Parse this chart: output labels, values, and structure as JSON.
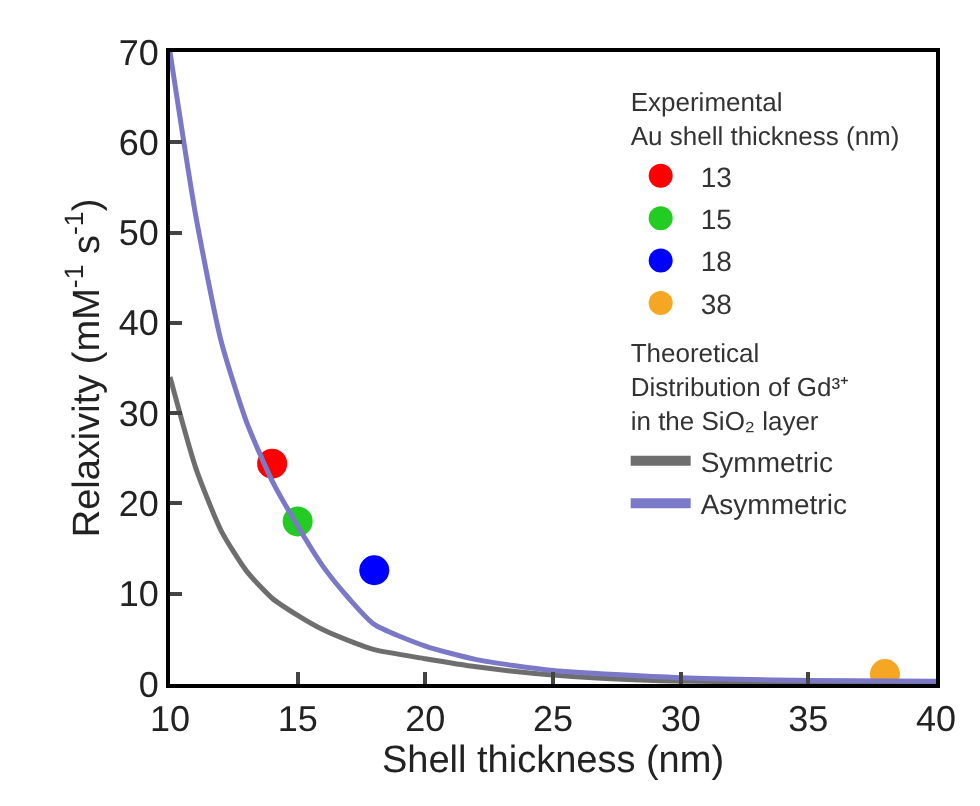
{
  "chart_data": {
    "type": "line",
    "xlabel": "Shell thickness (nm)",
    "ylabel": "Relaxivity (mM$^{-1}$ s$^{-1}$)",
    "legend_title": "Experimental\nAu shell thickness (nm)",
    "annotations": [
      "Theoretical\nDistribution of Gd³⁺\nin the SiO₂ layer"
    ],
    "xlim": [
      10,
      40
    ],
    "xticks": [
      10,
      15,
      20,
      25,
      30,
      35,
      40
    ],
    "ylim": [
      0,
      70
    ],
    "yticks": [
      0,
      10,
      20,
      30,
      40,
      50,
      60,
      70
    ],
    "legend": "top right",
    "series": [
      {
        "name": "13",
        "type": "scatter",
        "marker": "circle",
        "color": "#ff0000",
        "x": [
          14
        ],
        "values": [
          24.4
        ]
      },
      {
        "name": "15",
        "type": "scatter",
        "marker": "circle",
        "color": "#22cc22",
        "x": [
          15
        ],
        "values": [
          18
        ]
      },
      {
        "name": "18",
        "type": "scatter",
        "marker": "circle",
        "color": "#0000ff",
        "x": [
          18
        ],
        "values": [
          12.6
        ]
      },
      {
        "name": "38",
        "type": "scatter",
        "marker": "circle",
        "color": "#f5a623",
        "x": [
          38
        ],
        "values": [
          1.1
        ]
      },
      {
        "name": "Symmetric",
        "line_style": "solid",
        "color": "#6e6e6e",
        "x": [
          10,
          11,
          12,
          13,
          14,
          15,
          16,
          17,
          18,
          20,
          22,
          25,
          29,
          35,
          40
        ],
        "values": [
          34,
          24,
          17,
          12.5,
          9.5,
          7.6,
          6,
          4.8,
          3.8,
          2.8,
          1.9,
          1,
          0.4,
          0.2,
          0.1
        ]
      },
      {
        "name": "Asymmetric",
        "line_style": "solid",
        "color": "#7b78c8",
        "x": [
          10,
          11,
          12,
          13,
          14,
          15,
          16,
          17,
          18,
          20,
          22,
          25,
          30,
          35,
          40
        ],
        "values": [
          70,
          52,
          38,
          29,
          22.5,
          17.5,
          13,
          9.5,
          6.6,
          4.2,
          2.7,
          1.5,
          0.7,
          0.4,
          0.3
        ]
      }
    ]
  }
}
